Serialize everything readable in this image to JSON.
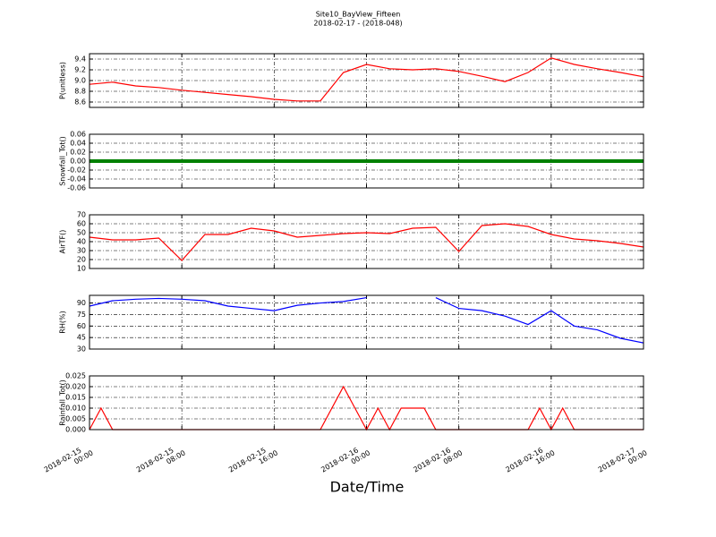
{
  "title": "Site10_BayView_Fifteen",
  "subtitle": "2018-02-17 - (2018-048)",
  "xlabel": "Date/Time",
  "chart_data": [
    {
      "type": "line",
      "ylabel": "P(unitless)",
      "color": "#ff0000",
      "x": [
        "2018-02-15 00:00",
        "2018-02-15 02:00",
        "2018-02-15 04:00",
        "2018-02-15 06:00",
        "2018-02-15 08:00",
        "2018-02-15 10:00",
        "2018-02-15 12:00",
        "2018-02-15 14:00",
        "2018-02-15 16:00",
        "2018-02-15 18:00",
        "2018-02-15 20:00",
        "2018-02-15 22:00",
        "2018-02-16 00:00",
        "2018-02-16 02:00",
        "2018-02-16 04:00",
        "2018-02-16 06:00",
        "2018-02-16 08:00",
        "2018-02-16 10:00",
        "2018-02-16 12:00",
        "2018-02-16 14:00",
        "2018-02-16 16:00",
        "2018-02-16 18:00",
        "2018-02-16 20:00",
        "2018-02-16 22:00",
        "2018-02-17 00:00"
      ],
      "values": [
        8.93,
        8.97,
        8.9,
        8.87,
        8.82,
        8.78,
        8.74,
        8.7,
        8.65,
        8.62,
        8.62,
        9.15,
        9.3,
        9.22,
        9.2,
        9.22,
        9.17,
        9.08,
        8.98,
        9.15,
        9.42,
        9.3,
        9.22,
        9.15,
        9.07
      ],
      "xlim": [
        "2018-02-15 00:00",
        "2018-02-17 00:00"
      ],
      "xticks": [
        "2018-02-15 00:00",
        "2018-02-15 08:00",
        "2018-02-15 16:00",
        "2018-02-16 00:00",
        "2018-02-16 08:00",
        "2018-02-16 16:00",
        "2018-02-17 00:00"
      ],
      "ylim": [
        8.5,
        9.5
      ],
      "yticks": [
        8.6,
        8.8,
        {
          "value": 9,
          "label": "9.0"
        },
        9.2,
        9.4
      ],
      "grid": true
    },
    {
      "type": "line",
      "ylabel": "Snowfall_Tot()",
      "color": "#008000",
      "x": [
        "2018-02-15 00:00",
        "2018-02-15 02:00",
        "2018-02-15 04:00",
        "2018-02-15 06:00",
        "2018-02-15 08:00",
        "2018-02-15 10:00",
        "2018-02-15 12:00",
        "2018-02-15 14:00",
        "2018-02-15 16:00",
        "2018-02-15 18:00",
        "2018-02-15 20:00",
        "2018-02-15 22:00",
        "2018-02-16 00:00",
        "2018-02-16 02:00",
        "2018-02-16 04:00",
        "2018-02-16 06:00",
        "2018-02-16 08:00",
        "2018-02-16 10:00",
        "2018-02-16 12:00",
        "2018-02-16 14:00",
        "2018-02-16 16:00",
        "2018-02-16 18:00",
        "2018-02-16 20:00",
        "2018-02-16 22:00",
        "2018-02-17 00:00"
      ],
      "values": [
        0,
        0,
        0,
        0,
        0,
        0,
        0,
        0,
        0,
        0,
        0,
        0,
        0,
        0,
        0,
        0,
        0,
        0,
        0,
        0,
        0,
        0,
        0,
        0,
        0
      ],
      "xlim": [
        "2018-02-15 00:00",
        "2018-02-17 00:00"
      ],
      "xticks": [
        "2018-02-15 00:00",
        "2018-02-15 08:00",
        "2018-02-15 16:00",
        "2018-02-16 00:00",
        "2018-02-16 08:00",
        "2018-02-16 16:00",
        "2018-02-17 00:00"
      ],
      "ylim": [
        -0.06,
        0.06
      ],
      "yticks": [
        -0.06,
        -0.04,
        -0.02,
        {
          "value": 0,
          "label": "0.00"
        },
        0.02,
        0.04,
        0.06
      ],
      "grid": true
    },
    {
      "type": "line",
      "ylabel": "AirTF()",
      "color": "#ff0000",
      "x": [
        "2018-02-15 00:00",
        "2018-02-15 02:00",
        "2018-02-15 04:00",
        "2018-02-15 06:00",
        "2018-02-15 08:00",
        "2018-02-15 10:00",
        "2018-02-15 12:00",
        "2018-02-15 14:00",
        "2018-02-15 16:00",
        "2018-02-15 18:00",
        "2018-02-15 20:00",
        "2018-02-15 22:00",
        "2018-02-16 00:00",
        "2018-02-16 02:00",
        "2018-02-16 04:00",
        "2018-02-16 06:00",
        "2018-02-16 08:00",
        "2018-02-16 10:00",
        "2018-02-16 12:00",
        "2018-02-16 14:00",
        "2018-02-16 16:00",
        "2018-02-16 18:00",
        "2018-02-16 20:00",
        "2018-02-16 22:00",
        "2018-02-17 00:00"
      ],
      "values": [
        45,
        42,
        42,
        44,
        19,
        48,
        48,
        55,
        52,
        45,
        47,
        49,
        50,
        49,
        55,
        56,
        29,
        58,
        60,
        57,
        48,
        43,
        41,
        38,
        34
      ],
      "xlim": [
        "2018-02-15 00:00",
        "2018-02-17 00:00"
      ],
      "xticks": [
        "2018-02-15 00:00",
        "2018-02-15 08:00",
        "2018-02-15 16:00",
        "2018-02-16 00:00",
        "2018-02-16 08:00",
        "2018-02-16 16:00",
        "2018-02-17 00:00"
      ],
      "ylim": [
        10,
        70
      ],
      "yticks": [
        10,
        20,
        30,
        40,
        50,
        60,
        70
      ],
      "grid": true
    },
    {
      "type": "line",
      "ylabel": "RH(%)",
      "color": "#0000ff",
      "x": [
        "2018-02-15 00:00",
        "2018-02-15 02:00",
        "2018-02-15 04:00",
        "2018-02-15 06:00",
        "2018-02-15 08:00",
        "2018-02-15 10:00",
        "2018-02-15 12:00",
        "2018-02-15 14:00",
        "2018-02-15 16:00",
        "2018-02-15 18:00",
        "2018-02-15 20:00",
        "2018-02-15 22:00",
        "2018-02-16 00:00",
        "2018-02-16 02:00",
        "2018-02-16 04:00",
        "2018-02-16 06:00",
        "2018-02-16 08:00",
        "2018-02-16 10:00",
        "2018-02-16 12:00",
        "2018-02-16 14:00",
        "2018-02-16 16:00",
        "2018-02-16 18:00",
        "2018-02-16 20:00",
        "2018-02-16 22:00",
        "2018-02-17 00:00"
      ],
      "values": [
        86,
        93,
        95,
        96,
        95,
        93,
        86,
        83,
        80,
        87,
        90,
        92,
        97,
        null,
        null,
        97,
        83,
        80,
        73,
        62,
        80,
        60,
        55,
        44,
        38
      ],
      "xlim": [
        "2018-02-15 00:00",
        "2018-02-17 00:00"
      ],
      "xticks": [
        "2018-02-15 00:00",
        "2018-02-15 08:00",
        "2018-02-15 16:00",
        "2018-02-16 00:00",
        "2018-02-16 08:00",
        "2018-02-16 16:00",
        "2018-02-17 00:00"
      ],
      "ylim": [
        30,
        100
      ],
      "yticks": [
        30,
        45,
        60,
        75,
        90
      ],
      "grid": true
    },
    {
      "type": "line",
      "ylabel": "Rainfall_Tot()",
      "color": "#ff0000",
      "x": [
        "2018-02-15 00:00",
        "2018-02-15 01:00",
        "2018-02-15 02:00",
        "2018-02-15 20:00",
        "2018-02-15 21:00",
        "2018-02-15 22:00",
        "2018-02-15 23:00",
        "2018-02-16 00:00",
        "2018-02-16 01:00",
        "2018-02-16 02:00",
        "2018-02-16 03:00",
        "2018-02-16 04:00",
        "2018-02-16 05:00",
        "2018-02-16 06:00",
        "2018-02-16 14:00",
        "2018-02-16 15:00",
        "2018-02-16 16:00",
        "2018-02-16 17:00",
        "2018-02-16 18:00",
        "2018-02-17 00:00"
      ],
      "values": [
        0,
        0.01,
        0,
        0,
        0.01,
        0.02,
        0.01,
        0,
        0.01,
        0,
        0.01,
        0.01,
        0.01,
        0,
        0,
        0.01,
        0,
        0.01,
        0,
        0
      ],
      "xlim": [
        "2018-02-15 00:00",
        "2018-02-17 00:00"
      ],
      "xticks": [
        "2018-02-15 00:00",
        "2018-02-15 08:00",
        "2018-02-15 16:00",
        "2018-02-16 00:00",
        "2018-02-16 08:00",
        "2018-02-16 16:00",
        "2018-02-17 00:00"
      ],
      "ylim": [
        0,
        0.025
      ],
      "yticks": [
        {
          "value": 0,
          "label": "0.000"
        },
        {
          "value": 0.005,
          "label": "0.005"
        },
        {
          "value": 0.01,
          "label": "0.010"
        },
        {
          "value": 0.015,
          "label": "0.015"
        },
        {
          "value": 0.02,
          "label": "0.020"
        },
        {
          "value": 0.025,
          "label": "0.025"
        }
      ],
      "grid": true
    }
  ]
}
